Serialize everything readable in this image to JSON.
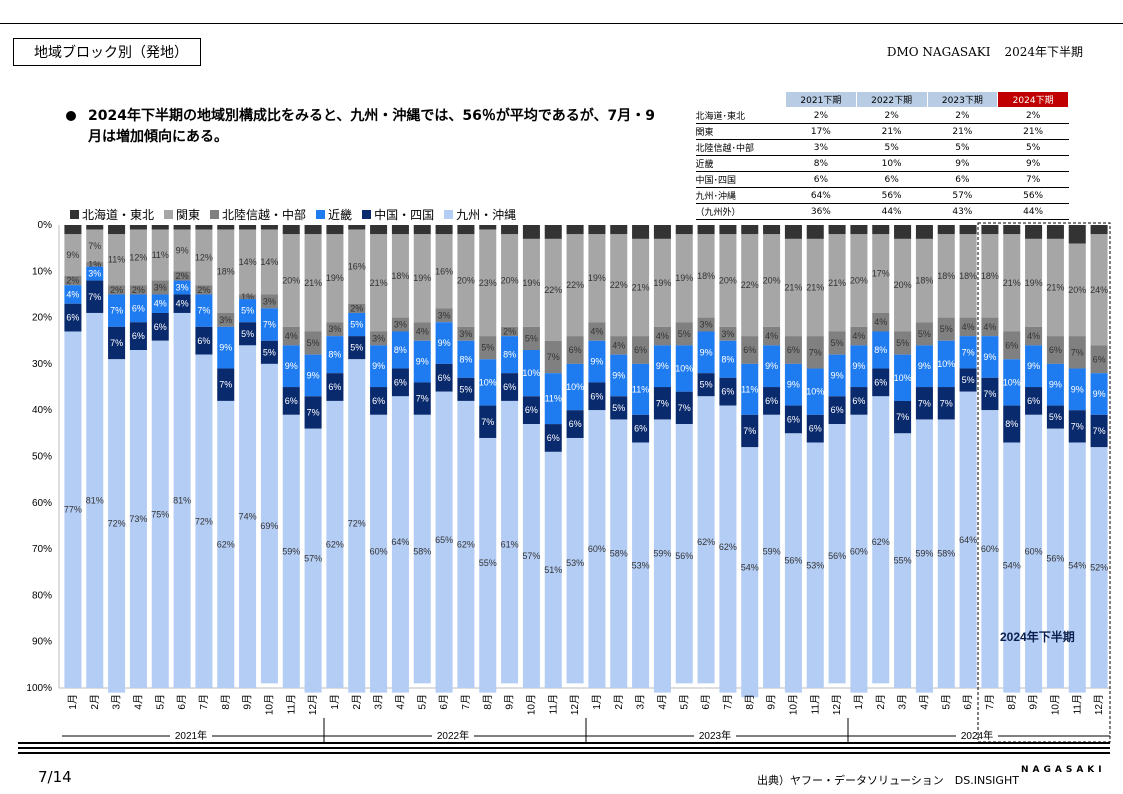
{
  "header": {
    "title": "地域ブロック別（発地）",
    "brand": "DMO NAGASAKI",
    "period": "2024年下半期"
  },
  "summary": {
    "text": "2024年下半期の地域別構成比をみると、九州・沖縄では、56％が平均であるが、7月・9月は増加傾向にある。",
    "table": {
      "columns": [
        "2021下期",
        "2022下期",
        "2023下期",
        "2024下期"
      ],
      "rows": [
        {
          "label": "北海道･東北",
          "values": [
            "2%",
            "2%",
            "2%",
            "2%"
          ]
        },
        {
          "label": "関東",
          "values": [
            "17%",
            "21%",
            "21%",
            "21%"
          ]
        },
        {
          "label": "北陸信越･中部",
          "values": [
            "3%",
            "5%",
            "5%",
            "5%"
          ]
        },
        {
          "label": "近畿",
          "values": [
            "8%",
            "10%",
            "9%",
            "9%"
          ]
        },
        {
          "label": "中国･四国",
          "values": [
            "6%",
            "6%",
            "6%",
            "7%"
          ]
        },
        {
          "label": "九州･沖縄",
          "values": [
            "64%",
            "56%",
            "57%",
            "56%"
          ]
        },
        {
          "label": "（九州外）",
          "values": [
            "36%",
            "44%",
            "43%",
            "44%"
          ]
        }
      ]
    }
  },
  "chart_data": {
    "type": "bar",
    "stacked": true,
    "y_axis": {
      "ticks": [
        "0%",
        "10%",
        "20%",
        "30%",
        "40%",
        "50%",
        "60%",
        "70%",
        "80%",
        "90%",
        "100%"
      ],
      "ylim": [
        0,
        100
      ],
      "inverted": true
    },
    "categories": [
      "1月",
      "2月",
      "3月",
      "4月",
      "5月",
      "6月",
      "7月",
      "8月",
      "9月",
      "10月",
      "11月",
      "12月",
      "1月",
      "2月",
      "3月",
      "4月",
      "5月",
      "6月",
      "7月",
      "8月",
      "9月",
      "10月",
      "11月",
      "12月",
      "1月",
      "2月",
      "3月",
      "4月",
      "5月",
      "6月",
      "7月",
      "8月",
      "9月",
      "10月",
      "11月",
      "12月",
      "1月",
      "2月",
      "3月",
      "4月",
      "5月",
      "6月",
      "7月",
      "8月",
      "9月",
      "10月",
      "11月",
      "12月"
    ],
    "year_groups": [
      {
        "label": "2021年",
        "count": 12
      },
      {
        "label": "2022年",
        "count": 12
      },
      {
        "label": "2023年",
        "count": 12
      },
      {
        "label": "2024年",
        "count": 12
      }
    ],
    "highlight": {
      "label": "2024年下半期",
      "start_index": 42,
      "end_index": 47
    },
    "series": [
      {
        "name": "北海道・東北",
        "color": "#333333",
        "values": [
          2,
          1,
          2,
          1,
          1,
          1,
          1,
          1,
          1,
          1,
          2,
          2,
          2,
          1,
          2,
          2,
          2,
          2,
          2,
          1,
          2,
          3,
          3,
          2,
          2,
          2,
          3,
          3,
          2,
          2,
          2,
          2,
          2,
          3,
          3,
          2,
          2,
          2,
          3,
          3,
          2,
          2,
          2,
          2,
          3,
          3,
          4,
          2
        ]
      },
      {
        "name": "関東",
        "color": "#a6a6a6",
        "values": [
          9,
          7,
          11,
          12,
          11,
          9,
          12,
          18,
          14,
          14,
          20,
          21,
          19,
          16,
          21,
          18,
          19,
          16,
          20,
          23,
          20,
          19,
          22,
          22,
          19,
          22,
          21,
          19,
          19,
          18,
          20,
          22,
          20,
          21,
          21,
          21,
          20,
          17,
          20,
          18,
          18,
          18,
          18,
          21,
          19,
          21,
          20,
          24
        ]
      },
      {
        "name": "北陸信越・中部",
        "color": "#808080",
        "values": [
          2,
          1,
          2,
          2,
          3,
          2,
          2,
          3,
          1,
          3,
          4,
          5,
          3,
          2,
          3,
          3,
          4,
          3,
          3,
          5,
          2,
          5,
          7,
          6,
          4,
          4,
          6,
          4,
          5,
          3,
          3,
          6,
          4,
          6,
          7,
          5,
          4,
          4,
          5,
          5,
          5,
          4,
          4,
          6,
          4,
          6,
          7,
          6
        ]
      },
      {
        "name": "近畿",
        "color": "#1f7bf0",
        "values": [
          4,
          3,
          7,
          6,
          4,
          3,
          7,
          9,
          5,
          7,
          9,
          9,
          8,
          5,
          9,
          8,
          9,
          9,
          8,
          10,
          8,
          10,
          11,
          10,
          9,
          9,
          11,
          9,
          10,
          9,
          8,
          11,
          9,
          9,
          10,
          9,
          9,
          8,
          10,
          9,
          10,
          7,
          9,
          10,
          9,
          9,
          9,
          9
        ]
      },
      {
        "name": "中国・四国",
        "color": "#0a2a6e",
        "values": [
          6,
          7,
          7,
          6,
          6,
          4,
          6,
          7,
          5,
          5,
          6,
          7,
          6,
          5,
          6,
          6,
          7,
          6,
          5,
          7,
          6,
          6,
          6,
          6,
          6,
          5,
          6,
          7,
          7,
          5,
          6,
          7,
          6,
          6,
          6,
          6,
          6,
          6,
          7,
          7,
          7,
          5,
          7,
          8,
          6,
          5,
          7,
          7
        ]
      },
      {
        "name": "九州・沖縄",
        "color": "#b4cdf5",
        "values": [
          77,
          81,
          72,
          73,
          75,
          81,
          72,
          62,
          74,
          69,
          59,
          57,
          62,
          72,
          60,
          64,
          58,
          65,
          62,
          55,
          61,
          57,
          51,
          53,
          60,
          58,
          53,
          59,
          56,
          62,
          62,
          54,
          59,
          56,
          53,
          56,
          60,
          62,
          55,
          59,
          58,
          64,
          60,
          54,
          60,
          56,
          54,
          52
        ]
      }
    ]
  },
  "footer": {
    "page": "7/14",
    "source": "出典）ヤフー・データソリューション　DS.INSIGHT",
    "logo": "NAGASAKI"
  }
}
